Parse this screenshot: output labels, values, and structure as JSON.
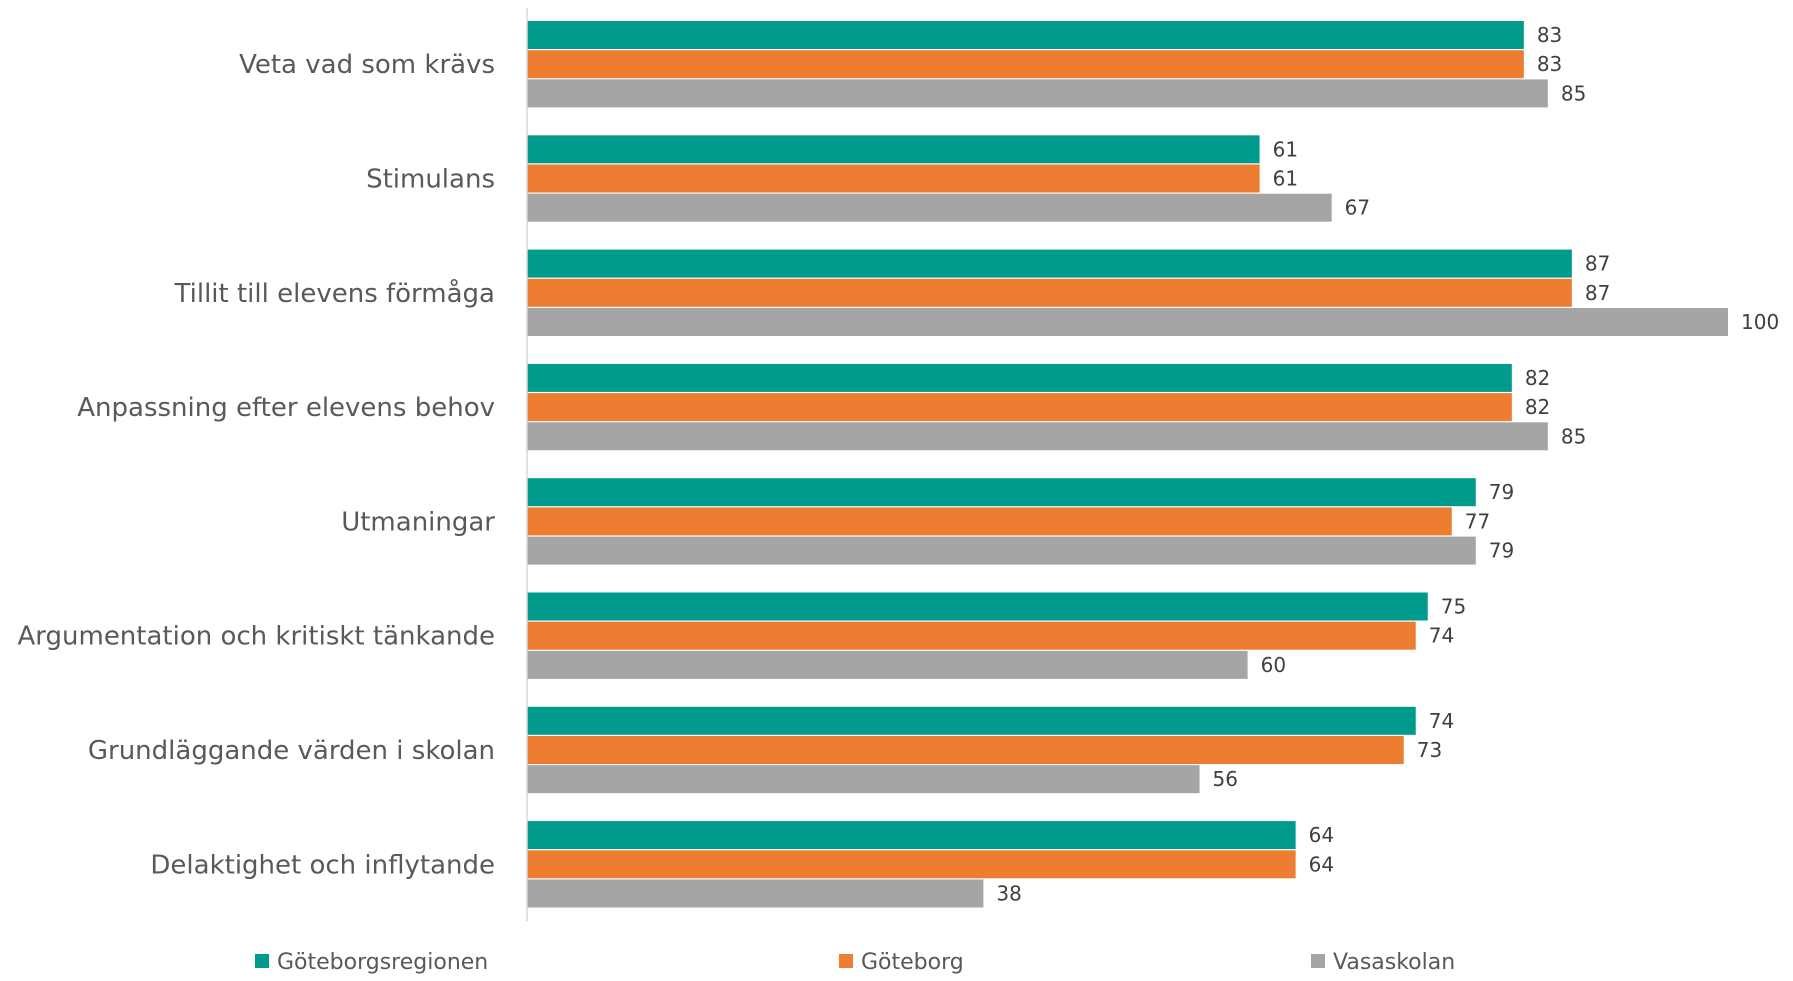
{
  "chart_data": {
    "type": "bar",
    "orientation": "horizontal",
    "categories": [
      "Veta vad som krävs",
      "Stimulans",
      "Tillit till elevens förmåga",
      "Anpassning efter elevens behov",
      "Utmaningar",
      "Argumentation och kritiskt tänkande",
      "Grundläggande värden i skolan",
      "Delaktighet och inflytande"
    ],
    "series": [
      {
        "name": "Göteborgsregionen",
        "color": "#009B8C",
        "values": [
          83,
          61,
          87,
          82,
          79,
          75,
          74,
          64
        ]
      },
      {
        "name": "Göteborg",
        "color": "#ED7D31",
        "values": [
          83,
          61,
          87,
          82,
          77,
          74,
          73,
          64
        ]
      },
      {
        "name": "Vasaskolan",
        "color": "#A5A5A5",
        "values": [
          85,
          67,
          100,
          85,
          79,
          60,
          56,
          38
        ]
      }
    ],
    "xlim": [
      0,
      100
    ],
    "data_labels": true,
    "grid": false,
    "legend": "bottom",
    "title": "",
    "xlabel": "",
    "ylabel": ""
  }
}
